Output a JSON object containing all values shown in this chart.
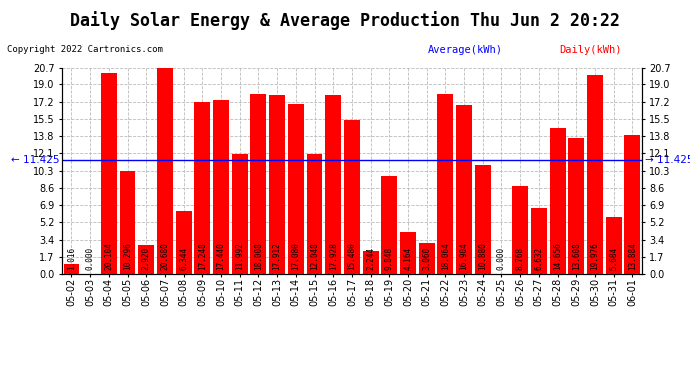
{
  "title": "Daily Solar Energy & Average Production Thu Jun 2 20:22",
  "copyright": "Copyright 2022 Cartronics.com",
  "legend_average": "Average(kWh)",
  "legend_daily": "Daily(kWh)",
  "average_value": 11.425,
  "categories": [
    "05-02",
    "05-03",
    "05-04",
    "05-05",
    "05-06",
    "05-07",
    "05-08",
    "05-09",
    "05-10",
    "05-11",
    "05-12",
    "05-13",
    "05-14",
    "05-15",
    "05-16",
    "05-17",
    "05-18",
    "05-19",
    "05-20",
    "05-21",
    "05-22",
    "05-23",
    "05-24",
    "05-25",
    "05-26",
    "05-27",
    "05-28",
    "05-29",
    "05-30",
    "05-31",
    "06-01"
  ],
  "values": [
    1.016,
    0.0,
    20.104,
    10.296,
    2.92,
    20.68,
    6.344,
    17.248,
    17.44,
    11.992,
    18.008,
    17.912,
    17.08,
    12.048,
    17.928,
    15.48,
    2.244,
    9.848,
    4.164,
    3.06,
    18.064,
    16.904,
    10.88,
    0.0,
    8.768,
    6.632,
    14.656,
    13.608,
    19.976,
    5.684,
    13.884
  ],
  "bar_color": "#FF0000",
  "avg_line_color": "#0000FF",
  "background_color": "#FFFFFF",
  "grid_color": "#BBBBBB",
  "title_color": "#000000",
  "copyright_color": "#000000",
  "avg_label_color": "#0000FF",
  "daily_label_color": "#FF0000",
  "ylim": [
    0.0,
    20.7
  ],
  "yticks": [
    0.0,
    1.7,
    3.4,
    5.2,
    6.9,
    8.6,
    10.3,
    12.1,
    13.8,
    15.5,
    17.2,
    19.0,
    20.7
  ],
  "title_fontsize": 12,
  "bar_label_fontsize": 5.5,
  "tick_fontsize": 7,
  "avg_fontsize": 7.5
}
